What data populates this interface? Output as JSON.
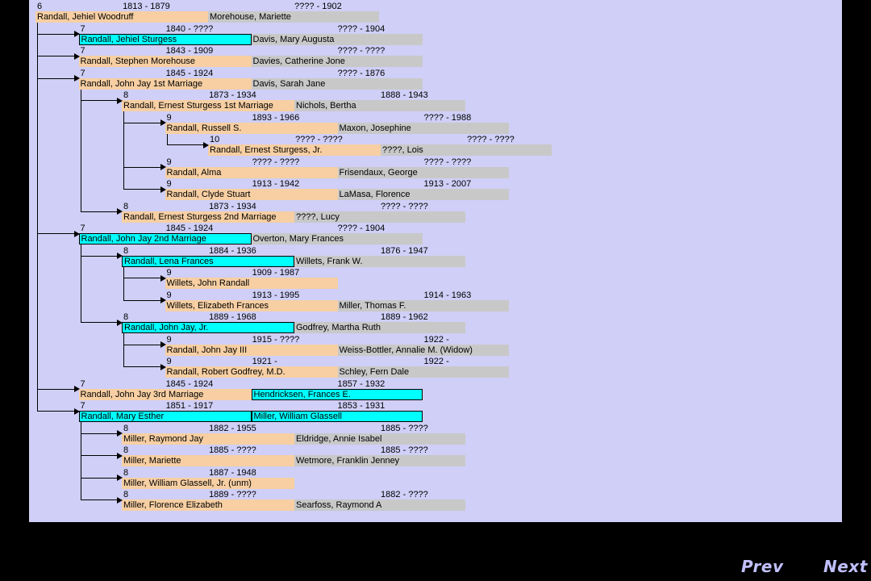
{
  "entries": [
    {
      "gen": "6",
      "dates": "1813 - 1879",
      "name": "Randall, Jehiel Woodruff",
      "spouse": "Morehouse, Mariette",
      "spouse_dates": "???? - 1902",
      "hl": ""
    },
    {
      "gen": "7",
      "dates": "1840 - ????",
      "name": "Randall, Jehiel Sturgess",
      "spouse": "Davis, Mary Augusta",
      "spouse_dates": "???? - 1904",
      "hl": "name"
    },
    {
      "gen": "7",
      "dates": "1843 - 1909",
      "name": "Randall, Stephen Morehouse",
      "spouse": "Davies, Catherine Jone",
      "spouse_dates": "???? - ????",
      "hl": ""
    },
    {
      "gen": "7",
      "dates": "1845 - 1924",
      "name": "Randall, John Jay 1st Marriage",
      "spouse": "Davis, Sarah Jane",
      "spouse_dates": "???? - 1876",
      "hl": ""
    },
    {
      "gen": "8",
      "dates": "1873 - 1934",
      "name": "Randall, Ernest Sturgess 1st Marriage",
      "spouse": "Nichols, Bertha",
      "spouse_dates": "1888 - 1943",
      "hl": ""
    },
    {
      "gen": "9",
      "dates": "1893 - 1966",
      "name": "Randall, Russell S.",
      "spouse": "Maxon, Josephine",
      "spouse_dates": "???? - 1988",
      "hl": ""
    },
    {
      "gen": "10",
      "dates": "???? - ????",
      "name": "Randall, Ernest Sturgess, Jr.",
      "spouse": "????, Lois",
      "spouse_dates": "???? - ????",
      "hl": ""
    },
    {
      "gen": "9",
      "dates": "???? - ????",
      "name": "Randall, Alma",
      "spouse": "Frisendaux, George",
      "spouse_dates": "???? - ????",
      "hl": ""
    },
    {
      "gen": "9",
      "dates": "1913 - 1942",
      "name": "Randall, Clyde Stuart",
      "spouse": "LaMasa, Florence",
      "spouse_dates": "1913 - 2007",
      "hl": ""
    },
    {
      "gen": "8",
      "dates": "1873 - 1934",
      "name": "Randall, Ernest Sturgess 2nd Marriage",
      "spouse": "????, Lucy",
      "spouse_dates": "???? - ????",
      "hl": ""
    },
    {
      "gen": "7",
      "dates": "1845 - 1924",
      "name": "Randall, John Jay 2nd Marriage",
      "spouse": "Overton, Mary Frances",
      "spouse_dates": "???? - 1904",
      "hl": "name"
    },
    {
      "gen": "8",
      "dates": "1884 - 1936",
      "name": "Randall, Lena Frances",
      "spouse": "Willets, Frank W.",
      "spouse_dates": "1876 - 1947",
      "hl": "name"
    },
    {
      "gen": "9",
      "dates": "1909 - 1987",
      "name": "Willets, John Randall",
      "spouse": "",
      "spouse_dates": "",
      "hl": ""
    },
    {
      "gen": "9",
      "dates": "1913 - 1995",
      "name": "Willets, Elizabeth Frances",
      "spouse": "Miller, Thomas F.",
      "spouse_dates": "1914 - 1963",
      "hl": ""
    },
    {
      "gen": "8",
      "dates": "1889 - 1968",
      "name": "Randall, John Jay, Jr.",
      "spouse": "Godfrey, Martha Ruth",
      "spouse_dates": "1889 - 1962",
      "hl": "name"
    },
    {
      "gen": "9",
      "dates": "1915 - ????",
      "name": "Randall, John Jay III",
      "spouse": "Weiss-Bottler, Annalie M. (Widow)",
      "spouse_dates": "1922 -",
      "hl": ""
    },
    {
      "gen": "9",
      "dates": "1921 -",
      "name": "Randall, Robert Godfrey, M.D.",
      "spouse": "Schley, Fern Dale",
      "spouse_dates": "1922 -",
      "hl": ""
    },
    {
      "gen": "7",
      "dates": "1845 - 1924",
      "name": "Randall, John Jay 3rd Marriage",
      "spouse": "Hendricksen, Frances E.",
      "spouse_dates": "1857 - 1932",
      "hl": "spouse"
    },
    {
      "gen": "7",
      "dates": "1851 - 1917",
      "name": "Randall, Mary Esther",
      "spouse": "Miller, William Glassell",
      "spouse_dates": "1853 - 1931",
      "hl": "both"
    },
    {
      "gen": "8",
      "dates": "1882 - 1955",
      "name": "Miller, Raymond Jay",
      "spouse": "Eldridge, Annie Isabel",
      "spouse_dates": "1885 - ????",
      "hl": ""
    },
    {
      "gen": "8",
      "dates": "1885 - ????",
      "name": "Miller, Mariette",
      "spouse": "Wetmore, Franklin Jenney",
      "spouse_dates": "1885 - ????",
      "hl": ""
    },
    {
      "gen": "8",
      "dates": "1887 - 1948",
      "name": "Miller, William Glassell, Jr. (unm)",
      "spouse": "",
      "spouse_dates": "",
      "hl": ""
    },
    {
      "gen": "8",
      "dates": "1889 - ????",
      "name": "Miller, Florence Elizabeth",
      "spouse": "Searfoss, Raymond A",
      "spouse_dates": "1882 - ????",
      "hl": ""
    }
  ],
  "nav": {
    "prev": "Prev",
    "next": "Next"
  },
  "colors": {
    "panel": "#cfcff7",
    "person": "#f7cfa3",
    "spouse": "#c8c8c8",
    "highlight": "#00ffff",
    "nav": "#c0c0ff"
  }
}
